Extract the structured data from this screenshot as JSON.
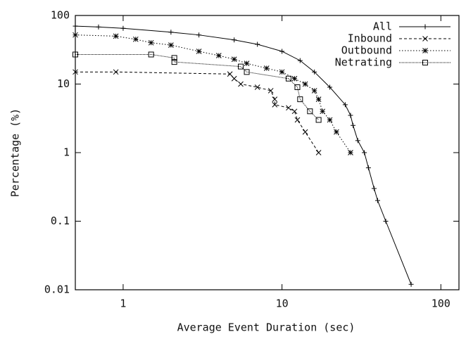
{
  "chart_data": {
    "type": "line",
    "x_label": "Average Event Duration (sec)",
    "y_label": "Percentage (%)",
    "x_log": true,
    "y_log": true,
    "xlim": [
      0.5,
      130
    ],
    "ylim": [
      0.01,
      100
    ],
    "xticks": [
      1,
      10,
      100
    ],
    "yticks": [
      0.01,
      0.1,
      1,
      10,
      100
    ],
    "legend": "top-right",
    "series": [
      {
        "name": "All",
        "color": "#000000",
        "dash": "none",
        "marker": "plus",
        "x": [
          0.5,
          0.7,
          1,
          2,
          3,
          5,
          7,
          10,
          13,
          16,
          20,
          25,
          27,
          28,
          30,
          33,
          35,
          38,
          40,
          45,
          65
        ],
        "values": [
          70,
          68,
          65,
          57,
          52,
          44,
          38,
          30,
          22,
          15,
          9,
          5,
          3.5,
          2.5,
          1.5,
          1,
          0.6,
          0.3,
          0.2,
          0.1,
          0.012
        ]
      },
      {
        "name": "Inbound",
        "color": "#000000",
        "dash": "4 3",
        "marker": "cross",
        "x": [
          0.5,
          0.9,
          4.7,
          5,
          5.5,
          7,
          8.5,
          9,
          9,
          11,
          12,
          12.5,
          14,
          17
        ],
        "values": [
          15,
          15,
          14,
          12,
          10,
          9,
          8,
          6,
          5,
          4.5,
          4,
          3,
          2,
          1
        ]
      },
      {
        "name": "Outbound",
        "color": "#000000",
        "dash": "1.5 2.5",
        "marker": "star",
        "x": [
          0.5,
          0.9,
          1.2,
          1.5,
          2,
          3,
          4,
          5,
          6,
          8,
          10,
          12,
          14,
          16,
          17,
          18,
          20,
          22,
          27
        ],
        "values": [
          52,
          50,
          45,
          40,
          37,
          30,
          26,
          23,
          20,
          17,
          15,
          12,
          10,
          8,
          6,
          4,
          3,
          2,
          1
        ]
      },
      {
        "name": "Netrating",
        "color": "#000000",
        "dash": "1 1",
        "marker": "square",
        "x": [
          0.5,
          1.5,
          2.1,
          2.1,
          5.5,
          6,
          11,
          12.5,
          13,
          15,
          17
        ],
        "values": [
          27,
          27,
          24,
          21,
          18,
          15,
          12,
          9,
          6,
          4,
          3
        ]
      }
    ]
  }
}
